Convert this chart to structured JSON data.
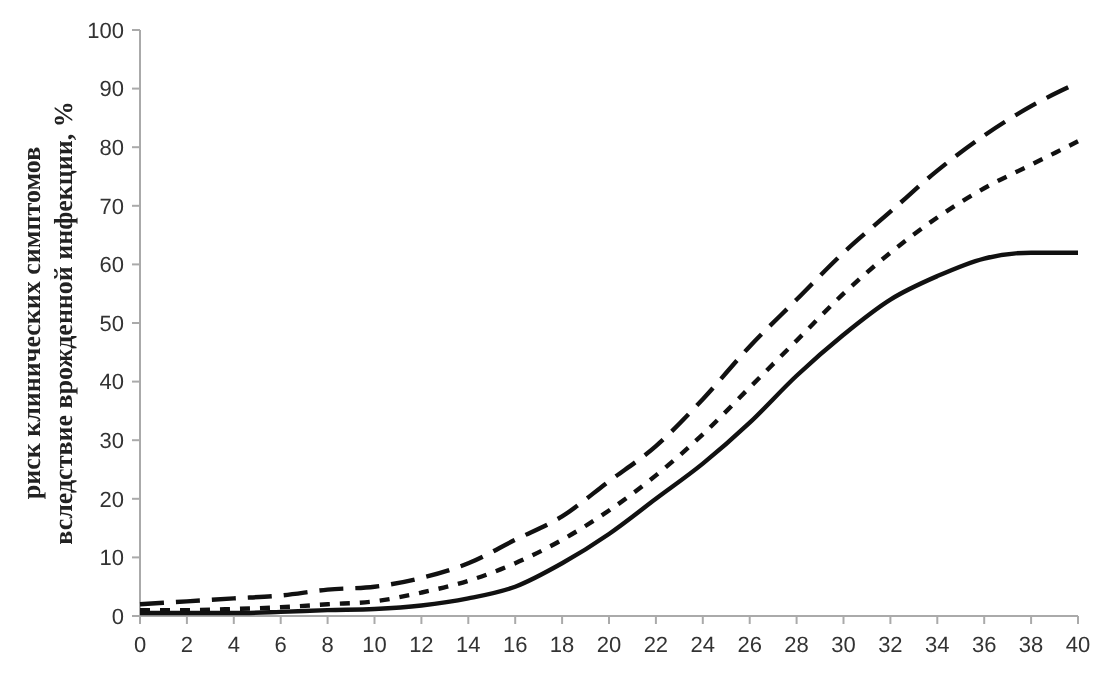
{
  "chart_data": {
    "type": "line",
    "ylabel": "риск клинических симптомов\nвследствие врожденной инфекции, %",
    "x": [
      0,
      2,
      4,
      6,
      8,
      10,
      12,
      14,
      16,
      18,
      20,
      22,
      24,
      26,
      28,
      30,
      32,
      34,
      36,
      38,
      40
    ],
    "xlim": [
      0,
      40
    ],
    "xticks": [
      0,
      2,
      4,
      6,
      8,
      10,
      12,
      14,
      16,
      18,
      20,
      22,
      24,
      26,
      28,
      30,
      32,
      34,
      36,
      38,
      40
    ],
    "ylim": [
      0,
      100
    ],
    "yticks": [
      0,
      10,
      20,
      30,
      40,
      50,
      60,
      70,
      80,
      90,
      100
    ],
    "grid": false,
    "marker": "none",
    "series": [
      {
        "color": "#111111",
        "line_style": "dashed",
        "values": [
          2,
          2.5,
          3,
          3.5,
          4.5,
          5,
          6.5,
          9,
          13,
          17,
          23,
          29,
          37,
          46,
          54,
          62,
          69,
          76,
          82,
          87,
          91
        ]
      },
      {
        "color": "#111111",
        "line_style": "dotted",
        "values": [
          1,
          1,
          1.2,
          1.5,
          2,
          2.5,
          4,
          6,
          9,
          13,
          18,
          24,
          31,
          39,
          47,
          55,
          62,
          68,
          73,
          77,
          81
        ]
      },
      {
        "color": "#111111",
        "line_style": "solid",
        "values": [
          0.5,
          0.5,
          0.5,
          0.7,
          1,
          1.2,
          1.8,
          3,
          5,
          9,
          14,
          20,
          26,
          33,
          41,
          48,
          54,
          58,
          61,
          62,
          62
        ]
      }
    ]
  }
}
